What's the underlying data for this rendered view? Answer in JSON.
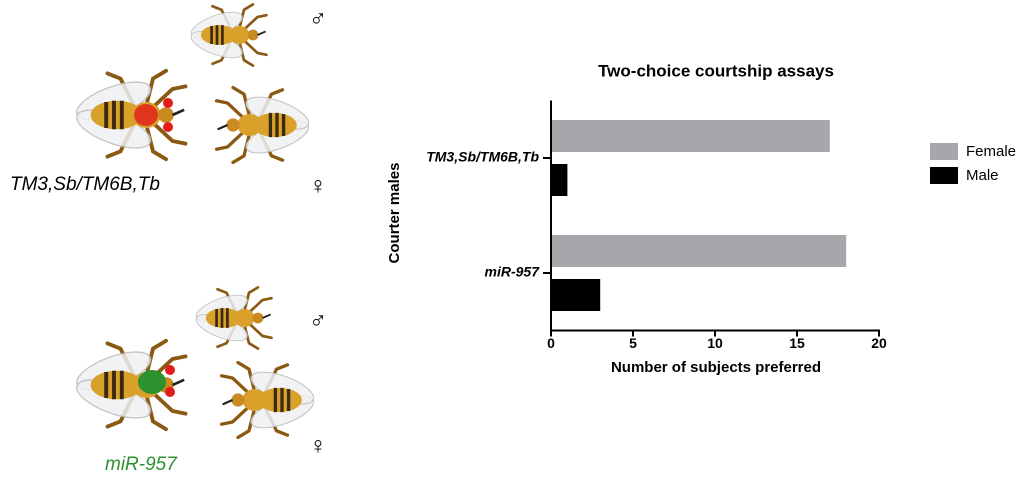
{
  "chart_data": {
    "type": "hbar",
    "title": "Two-choice courtship assays",
    "categories": [
      "TM3,Sb/TM6B,Tb",
      "miR-957"
    ],
    "series": [
      {
        "name": "Female",
        "color": "#a7a6ab",
        "values": [
          17,
          18
        ]
      },
      {
        "name": "Male",
        "color": "#000000",
        "values": [
          1,
          3
        ]
      }
    ],
    "xlim": [
      0,
      20
    ],
    "xticks": [
      0,
      5,
      10,
      15,
      20
    ],
    "xlabel": "Number of subjects preferred",
    "ylabel": "Courter males",
    "legend": "right"
  },
  "illustration": {
    "panels": [
      {
        "label": "TM3,Sb/TM6B,Tb",
        "male_symbol": "♂",
        "female_symbol": "♀"
      },
      {
        "label": "miR-957",
        "male_symbol": "♂",
        "female_symbol": "♀"
      }
    ]
  }
}
